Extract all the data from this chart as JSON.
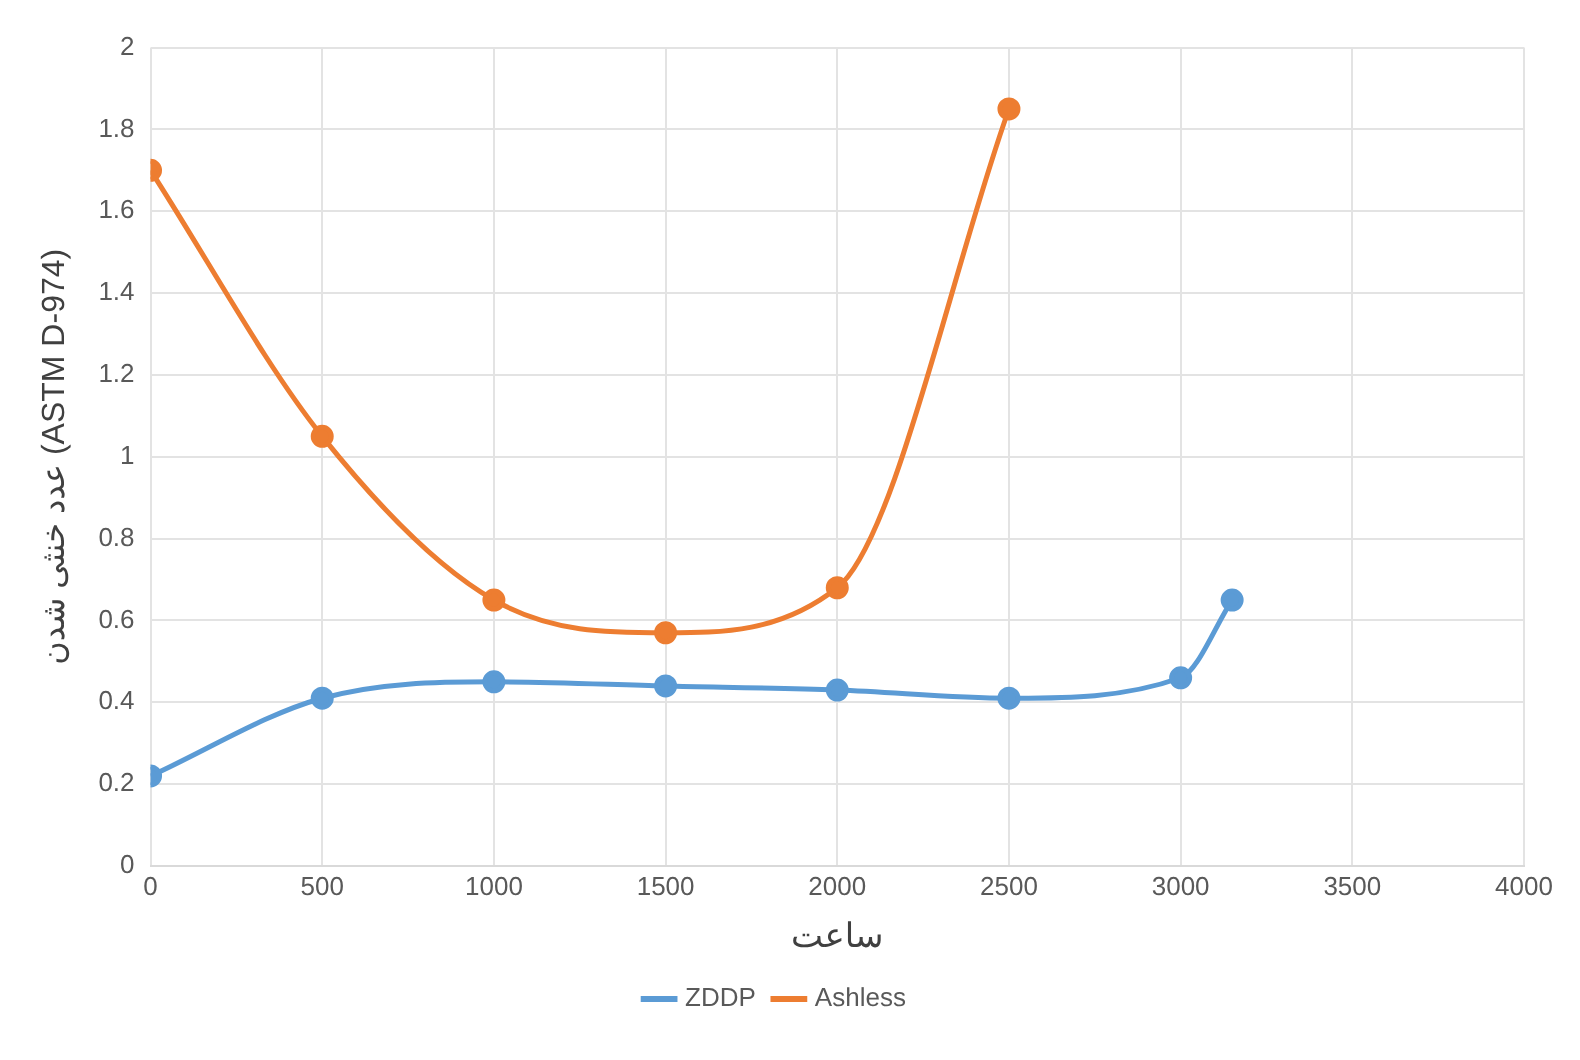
{
  "chart_data": {
    "type": "line",
    "xlabel": "ساعت",
    "ylabel": "عدد خنثی شدن (ASTM D-974)",
    "xlim": [
      0,
      4000
    ],
    "xticks": [
      0,
      500,
      1000,
      1500,
      2000,
      2500,
      3000,
      3500,
      4000
    ],
    "ylim": [
      0,
      2
    ],
    "yticks": [
      0,
      {
        "value": 0.2,
        "label": "0.2"
      },
      {
        "value": 0.4,
        "label": "0.4"
      },
      {
        "value": 0.6,
        "label": "0.6"
      },
      {
        "value": 0.8,
        "label": "0.8"
      },
      1,
      {
        "value": 1.2,
        "label": "1.2"
      },
      {
        "value": 1.4,
        "label": "1.4"
      },
      {
        "value": 1.6,
        "label": "1.6"
      },
      {
        "value": 1.8,
        "label": "1.8"
      },
      2
    ],
    "grid": true,
    "legend": "bottom",
    "marker": "circle",
    "line_style": "solid",
    "series": [
      {
        "name": "ZDDP",
        "color": "#5b9bd5",
        "x": [
          0,
          500,
          1000,
          1500,
          2000,
          2500,
          3000,
          3150
        ],
        "values": [
          0.22,
          0.41,
          0.45,
          0.44,
          0.43,
          0.41,
          0.46,
          0.65
        ]
      },
      {
        "name": "Ashless",
        "color": "#ed7d31",
        "x": [
          0,
          500,
          1000,
          1500,
          2000,
          2500
        ],
        "values": [
          1.7,
          1.05,
          0.65,
          0.57,
          0.68,
          1.85
        ]
      }
    ]
  }
}
